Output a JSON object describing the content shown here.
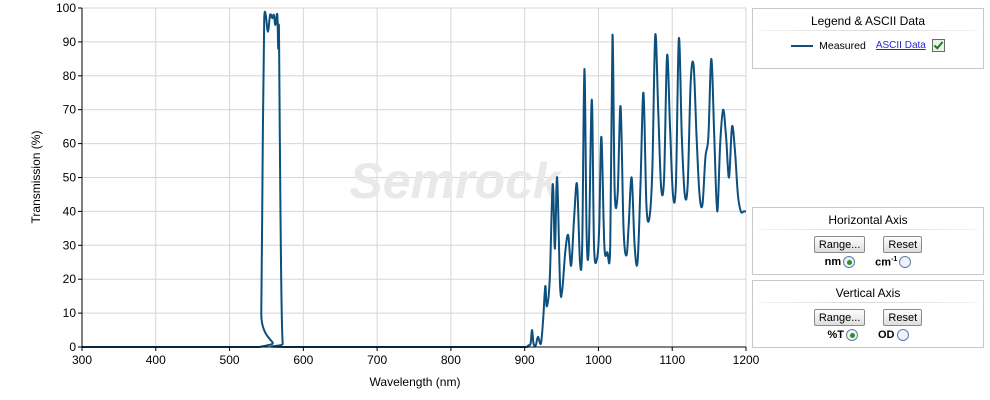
{
  "chart_data": {
    "type": "line",
    "xlabel": "Wavelength (nm)",
    "ylabel": "Transmission (%)",
    "xlim": [
      300,
      1200
    ],
    "ylim": [
      0,
      100
    ],
    "xticks": [
      300,
      400,
      500,
      600,
      700,
      800,
      900,
      1000,
      1100,
      1200
    ],
    "yticks": [
      0,
      10,
      20,
      30,
      40,
      50,
      60,
      70,
      80,
      90,
      100
    ],
    "grid": true,
    "watermark": "Semrock",
    "series": [
      {
        "name": "Measured",
        "color": "#0d4f7d",
        "x": [
          300,
          540,
          543,
          545,
          547,
          549,
          552,
          555,
          558,
          560,
          562,
          564,
          565,
          566,
          567,
          569,
          572,
          580,
          860,
          900,
          905,
          908,
          910,
          912,
          915,
          918,
          922,
          925,
          928,
          930,
          934,
          938,
          941,
          944,
          948,
          951,
          955,
          959,
          963,
          967,
          971,
          975,
          978,
          981,
          984,
          987,
          991,
          994,
          998,
          1001,
          1004,
          1008,
          1012,
          1016,
          1019,
          1022,
          1026,
          1030,
          1034,
          1038,
          1041,
          1045,
          1049,
          1053,
          1057,
          1061,
          1065,
          1069,
          1073,
          1077,
          1081,
          1085,
          1089,
          1093,
          1097,
          1101,
          1105,
          1109,
          1113,
          1117,
          1121,
          1125,
          1129,
          1133,
          1137,
          1141,
          1145,
          1149,
          1153,
          1157,
          1161,
          1165,
          1169,
          1173,
          1177,
          1181,
          1185,
          1189,
          1193,
          1197,
          1200
        ],
        "y": [
          0,
          0,
          10,
          60,
          97,
          98,
          93,
          98,
          97,
          98,
          95,
          98,
          97,
          88,
          93,
          40,
          1,
          0,
          0,
          0,
          0.5,
          1,
          5,
          1,
          0.5,
          3,
          1,
          8,
          18,
          12,
          20,
          48,
          29,
          50,
          18,
          17,
          28,
          33,
          24,
          38,
          48,
          25,
          30,
          82,
          33,
          30,
          73,
          30,
          26,
          35,
          62,
          30,
          28,
          30,
          92,
          46,
          45,
          71,
          35,
          27,
          36,
          50,
          30,
          25,
          48,
          75,
          42,
          38,
          52,
          92,
          70,
          47,
          50,
          86,
          65,
          45,
          48,
          91,
          62,
          45,
          48,
          78,
          83,
          62,
          45,
          42,
          56,
          62,
          85,
          62,
          40,
          60,
          70,
          62,
          50,
          65,
          58,
          45,
          40,
          40,
          40
        ]
      }
    ]
  },
  "legend": {
    "title": "Legend & ASCII Data",
    "series_label": "Measured",
    "ascii_link": "ASCII Data"
  },
  "horizontal_axis": {
    "title": "Horizontal Axis",
    "range_btn": "Range...",
    "reset_btn": "Reset",
    "opt1": "nm",
    "opt2_base": "cm",
    "opt2_sup": "-1"
  },
  "vertical_axis": {
    "title": "Vertical  Axis",
    "range_btn": "Range...",
    "reset_btn": "Reset",
    "opt1": "%T",
    "opt2": "OD"
  }
}
